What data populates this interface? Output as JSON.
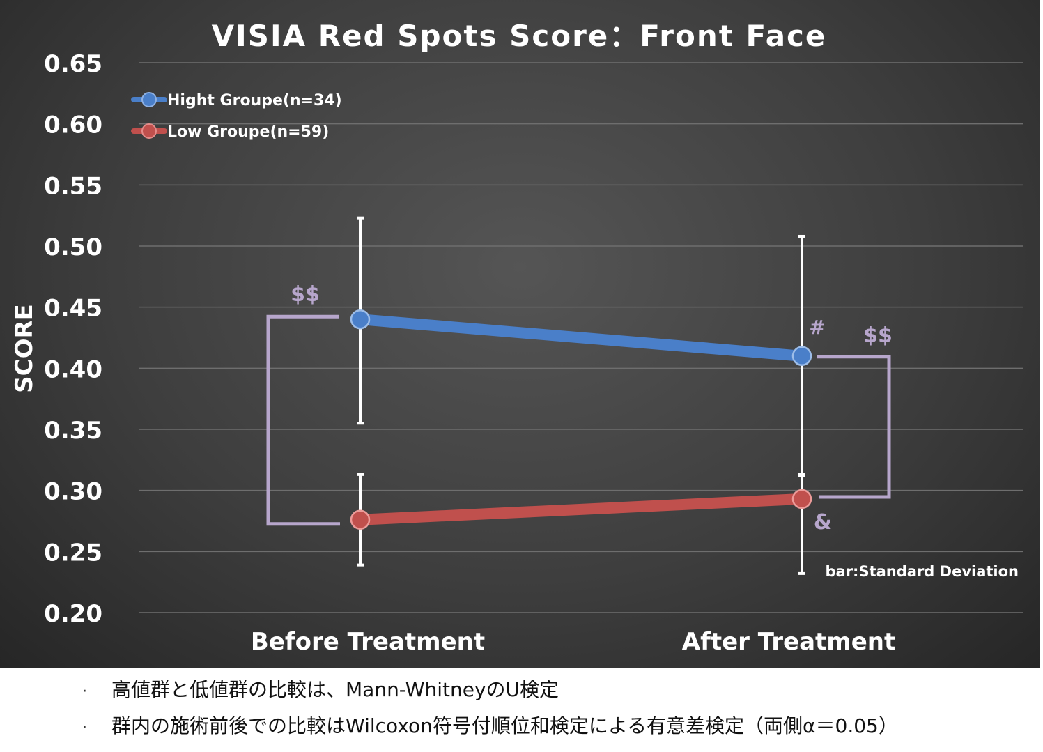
{
  "chart_data": {
    "type": "line",
    "title": "VISIA Red Spots Score：Front Face",
    "ylabel": "SCORE",
    "xlabel": "",
    "categories": [
      "Before Treatment",
      "After Treatment"
    ],
    "ylim": [
      0.2,
      0.65
    ],
    "yticks": [
      "0.65",
      "0.60",
      "0.55",
      "0.50",
      "0.45",
      "0.40",
      "0.35",
      "0.30",
      "0.25",
      "0.20"
    ],
    "ytick_values": [
      0.65,
      0.6,
      0.55,
      0.5,
      0.45,
      0.4,
      0.35,
      0.3,
      0.25,
      0.2
    ],
    "grid": true,
    "legend_position": "top-left",
    "series": [
      {
        "name": "Hight Groupe(n=34)",
        "color": "#4a7fc9",
        "values": [
          0.44,
          0.41
        ],
        "sd_upper": [
          0.523,
          0.508
        ],
        "sd_lower": [
          0.355,
          0.312
        ]
      },
      {
        "name": "Low Groupe(n=59)",
        "color": "#c0504d",
        "values": [
          0.276,
          0.293
        ],
        "sd_upper": [
          0.313,
          0.313
        ],
        "sd_lower": [
          0.239,
          0.232
        ]
      }
    ],
    "annotations": {
      "before_bracket_mark": "$$",
      "after_bracket_mark": "$$",
      "high_after_mark": "#",
      "low_after_mark": "&",
      "bar_note": "bar:Standard Deviation"
    },
    "annotation_color": "#b7a6cc"
  },
  "notes": [
    "高値群と低値群の比較は、Mann-WhitneyのU検定",
    "群内の施術前後での比較はWilcoxon符号付順位和検定による有意差検定（両側α＝0.05）"
  ],
  "note_bullet": "·"
}
